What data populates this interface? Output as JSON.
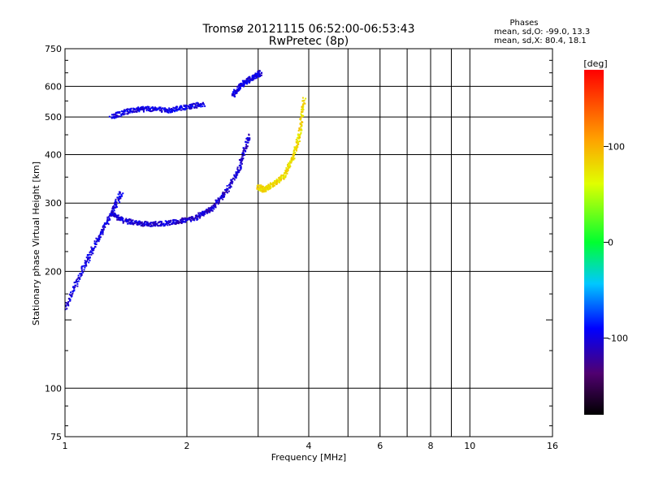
{
  "chart_data": {
    "type": "scatter",
    "title": "Tromsø 20121115 06:52:00-06:53:43",
    "subtitle": "RwPretec (8p)",
    "xlabel": "Frequency [MHz]",
    "ylabel": "Stationary phase Virtual Height [km]",
    "x_scale": "log",
    "y_scale": "log",
    "xlim": [
      1,
      16
    ],
    "ylim": [
      75,
      750
    ],
    "grid": true,
    "x_ticks": [
      1,
      2,
      4,
      6,
      8,
      10,
      16
    ],
    "x_tick_labels": [
      "1",
      "2",
      "4",
      "6",
      "8",
      "10",
      "16"
    ],
    "x_minor_ticks": [
      3,
      5,
      7,
      9
    ],
    "y_ticks": [
      75,
      100,
      200,
      300,
      400,
      500,
      600,
      750
    ],
    "y_tick_labels": [
      "75",
      "100",
      "200",
      "300",
      "400",
      "500",
      "600",
      "750"
    ],
    "y_minor_ticks": [
      150
    ],
    "info_title": "Phases",
    "info_lines": [
      "mean, sd,O:  -99.0,  13.3",
      "mean, sd,X:   80.4,  18.1"
    ],
    "colorbar": {
      "label": "[deg]",
      "range": [
        -180,
        180
      ],
      "ticks": [
        100,
        0,
        -100
      ],
      "tick_labels": [
        "100",
        "0",
        "-100"
      ]
    },
    "traces": [
      {
        "trace": "O-mode F-region trace (bottom branch)",
        "mean_phase_deg": -105,
        "x": [
          1.3,
          1.4,
          1.55,
          1.7,
          1.9,
          2.1,
          2.3,
          2.5,
          2.7,
          2.85
        ],
        "y": [
          282,
          270,
          265,
          265,
          268,
          275,
          290,
          320,
          370,
          450
        ]
      },
      {
        "trace": "O-mode F-region trace (upper branch)",
        "mean_phase_deg": -100,
        "x": [
          2.6,
          2.75,
          2.9,
          3.05
        ],
        "y": [
          570,
          610,
          630,
          650
        ]
      },
      {
        "trace": "X-mode trace",
        "mean_phase_deg": 80,
        "x": [
          3.0,
          3.1,
          3.25,
          3.45,
          3.65,
          3.8,
          3.9
        ],
        "y": [
          330,
          325,
          335,
          350,
          390,
          450,
          560
        ]
      },
      {
        "trace": "Low frequency spread echoes",
        "mean_phase_deg": -100,
        "x": [
          1.0,
          1.1,
          1.2,
          1.3,
          1.38
        ],
        "y": [
          160,
          200,
          240,
          280,
          320
        ]
      },
      {
        "trace": "Upper spread echoes",
        "mean_phase_deg": -98,
        "x": [
          1.3,
          1.45,
          1.6,
          1.8,
          2.0,
          2.2
        ],
        "y": [
          500,
          520,
          525,
          520,
          530,
          540
        ]
      }
    ]
  }
}
